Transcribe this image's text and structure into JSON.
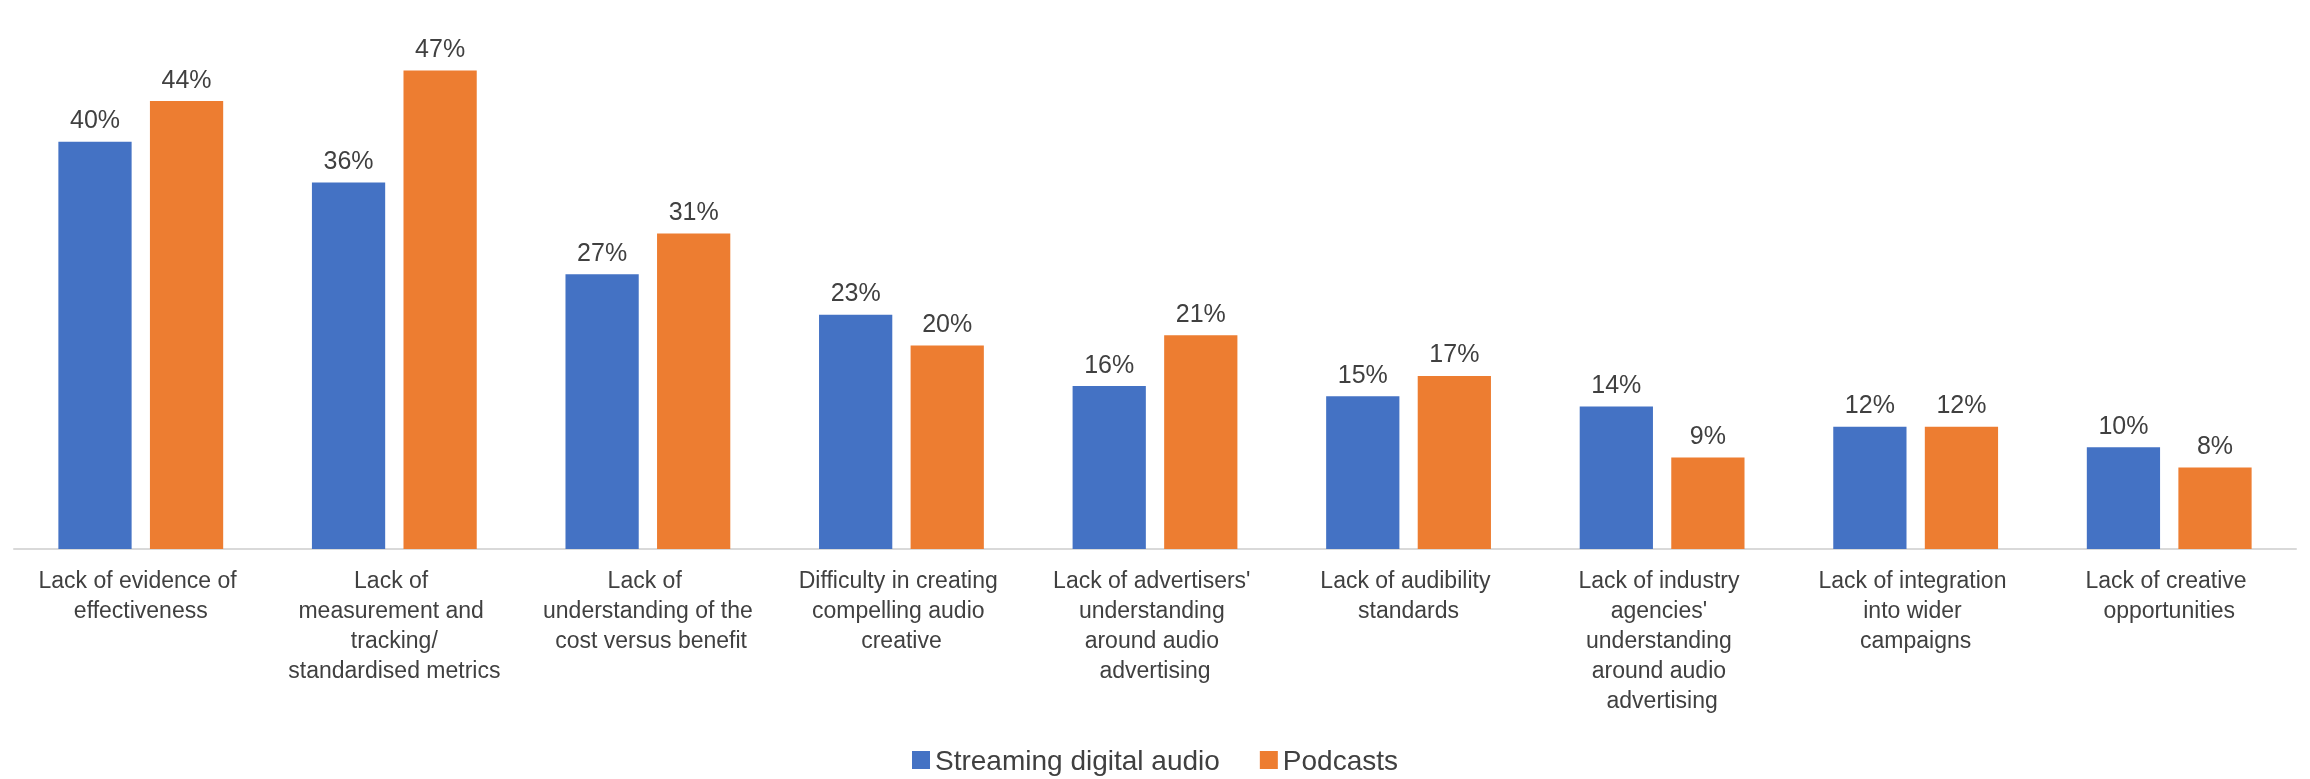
{
  "chart_data": {
    "type": "bar",
    "categories": [
      "Lack of evidence of effectiveness",
      "Lack of measurement and tracking/standardised metrics",
      "Lack of understanding of the cost versus benefit",
      "Difficulty in creating compelling audio creative",
      "Lack of advertisers' understanding around audio advertising",
      "Lack of audibility standards",
      "Lack of industry agencies' understanding around audio advertising",
      "Lack of integration into wider campaigns",
      "Lack of creative opportunities"
    ],
    "series": [
      {
        "name": "Streaming digital audio",
        "color": "#4472c4",
        "values": [
          40,
          36,
          27,
          23,
          16,
          15,
          14,
          12,
          10
        ],
        "value_labels": [
          "40%",
          "36%",
          "27%",
          "23%",
          "16%",
          "15%",
          "14%",
          "12%",
          "10%"
        ]
      },
      {
        "name": "Podcasts",
        "color": "#ed7d31",
        "values": [
          44,
          47,
          31,
          20,
          21,
          17,
          9,
          12,
          8
        ],
        "value_labels": [
          "44%",
          "47%",
          "31%",
          "20%",
          "21%",
          "17%",
          "9%",
          "12%",
          "8%"
        ]
      }
    ],
    "legend": "bottom"
  }
}
